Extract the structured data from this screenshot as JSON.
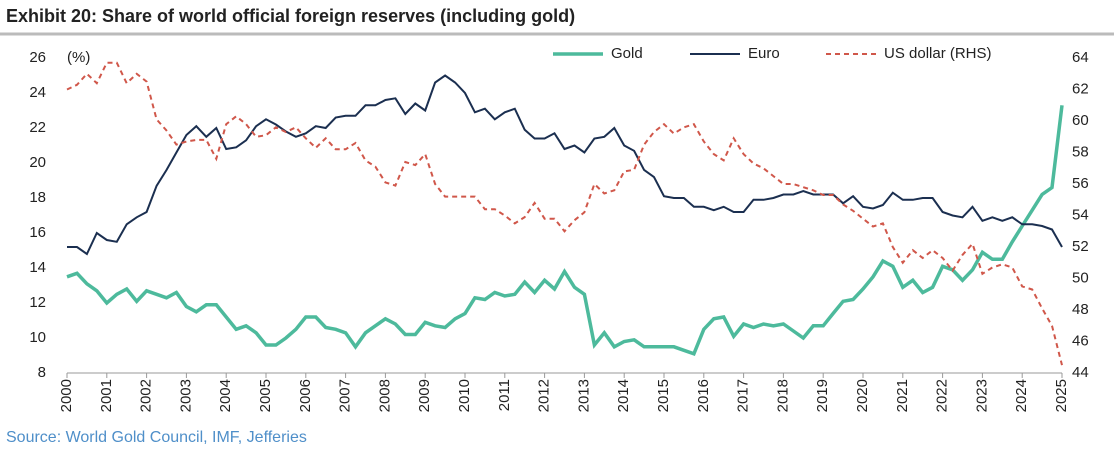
{
  "chart_data": {
    "type": "line",
    "title": "Exhibit 20: Share of world official foreign reserves (including gold)",
    "y_label": "(%)",
    "source": "Source: World Gold Council, IMF, Jefferies",
    "x": [
      2000,
      2000.25,
      2000.5,
      2000.75,
      2001,
      2001.25,
      2001.5,
      2001.75,
      2002,
      2002.25,
      2002.5,
      2002.75,
      2003,
      2003.25,
      2003.5,
      2003.75,
      2004,
      2004.25,
      2004.5,
      2004.75,
      2005,
      2005.25,
      2005.5,
      2005.75,
      2006,
      2006.25,
      2006.5,
      2006.75,
      2007,
      2007.25,
      2007.5,
      2007.75,
      2008,
      2008.25,
      2008.5,
      2008.75,
      2009,
      2009.25,
      2009.5,
      2009.75,
      2010,
      2010.25,
      2010.5,
      2010.75,
      2011,
      2011.25,
      2011.5,
      2011.75,
      2012,
      2012.25,
      2012.5,
      2012.75,
      2013,
      2013.25,
      2013.5,
      2013.75,
      2014,
      2014.25,
      2014.5,
      2014.75,
      2015,
      2015.25,
      2015.5,
      2015.75,
      2016,
      2016.25,
      2016.5,
      2016.75,
      2017,
      2017.25,
      2017.5,
      2017.75,
      2018,
      2018.25,
      2018.5,
      2018.75,
      2019,
      2019.25,
      2019.5,
      2019.75,
      2020,
      2020.25,
      2020.5,
      2020.75,
      2021,
      2021.25,
      2021.5,
      2021.75,
      2022,
      2022.25,
      2022.5,
      2022.75,
      2023,
      2023.25,
      2023.5,
      2023.75,
      2024,
      2024.25,
      2024.5,
      2024.75,
      2025
    ],
    "series": [
      {
        "name": "Gold",
        "color": "#4dba9c",
        "dash": false,
        "values": [
          13.5,
          13.7,
          13.1,
          12.7,
          12.0,
          12.5,
          12.8,
          12.1,
          12.7,
          12.5,
          12.3,
          12.6,
          11.8,
          11.5,
          11.9,
          11.9,
          11.2,
          10.5,
          10.7,
          10.3,
          9.6,
          9.6,
          10.0,
          10.5,
          11.2,
          11.2,
          10.6,
          10.5,
          10.3,
          9.5,
          10.3,
          10.7,
          11.1,
          10.8,
          10.2,
          10.2,
          10.9,
          10.7,
          10.6,
          11.1,
          11.4,
          12.3,
          12.2,
          12.6,
          12.4,
          12.5,
          13.2,
          12.6,
          13.3,
          12.8,
          13.8,
          12.9,
          12.5,
          9.6,
          10.3,
          9.5,
          9.8,
          9.9,
          9.5,
          9.5,
          9.5,
          9.5,
          9.3,
          9.1,
          10.5,
          11.1,
          11.2,
          10.1,
          10.8,
          10.6,
          10.8,
          10.7,
          10.8,
          10.4,
          10.0,
          10.7,
          10.7,
          11.4,
          12.1,
          12.2,
          12.8,
          13.5,
          14.4,
          14.1,
          12.9,
          13.3,
          12.6,
          12.9,
          14.1,
          13.9,
          13.3,
          13.9,
          14.9,
          14.5,
          14.5,
          15.5,
          16.4,
          17.3,
          18.2,
          18.6,
          23.3
        ]
      },
      {
        "name": "Euro",
        "color": "#1b2f50",
        "dash": false,
        "values": [
          15.2,
          15.2,
          14.8,
          16.0,
          15.6,
          15.5,
          16.5,
          16.9,
          17.2,
          18.7,
          19.6,
          20.6,
          21.6,
          22.1,
          21.5,
          22.0,
          20.8,
          20.9,
          21.3,
          22.1,
          22.5,
          22.2,
          21.8,
          21.5,
          21.7,
          22.1,
          22.0,
          22.6,
          22.7,
          22.7,
          23.3,
          23.3,
          23.6,
          23.7,
          22.8,
          23.4,
          23.0,
          24.6,
          25.0,
          24.6,
          24.0,
          22.9,
          23.1,
          22.5,
          22.9,
          23.1,
          21.9,
          21.4,
          21.4,
          21.7,
          20.8,
          21.0,
          20.6,
          21.4,
          21.5,
          22.0,
          21.0,
          20.7,
          19.6,
          19.2,
          18.1,
          18.0,
          18.0,
          17.5,
          17.5,
          17.3,
          17.5,
          17.2,
          17.2,
          17.9,
          17.9,
          18.0,
          18.2,
          18.2,
          18.4,
          18.2,
          18.2,
          18.2,
          17.7,
          18.1,
          17.5,
          17.4,
          17.6,
          18.3,
          17.9,
          17.9,
          18.0,
          18.0,
          17.2,
          17.0,
          16.9,
          17.5,
          16.7,
          16.9,
          16.7,
          16.9,
          16.5,
          16.5,
          16.4,
          16.2,
          15.2
        ]
      },
      {
        "name": "US dollar (RHS)",
        "color": "#d0574a",
        "dash": true,
        "axis": "y2",
        "values": [
          62.0,
          62.3,
          63.0,
          62.4,
          63.7,
          63.7,
          62.4,
          63.0,
          62.5,
          60.1,
          59.4,
          58.5,
          58.7,
          58.8,
          58.8,
          57.6,
          59.8,
          60.3,
          59.8,
          59.0,
          59.1,
          59.6,
          59.3,
          59.6,
          58.9,
          58.3,
          58.9,
          58.2,
          58.2,
          58.6,
          57.5,
          57.1,
          56.1,
          55.9,
          57.4,
          57.2,
          57.9,
          56.0,
          55.2,
          55.2,
          55.2,
          55.2,
          54.4,
          54.4,
          54.0,
          53.5,
          53.9,
          54.8,
          53.8,
          53.8,
          53.0,
          53.7,
          54.2,
          56.0,
          55.4,
          55.6,
          56.8,
          56.9,
          58.5,
          59.3,
          59.8,
          59.2,
          59.6,
          59.8,
          58.7,
          57.9,
          57.5,
          58.9,
          57.9,
          57.3,
          57.0,
          56.5,
          56.0,
          56.0,
          55.8,
          55.6,
          55.3,
          55.3,
          54.7,
          54.3,
          53.8,
          53.3,
          53.5,
          52.0,
          51.0,
          51.8,
          51.3,
          51.8,
          51.3,
          50.5,
          51.5,
          52.2,
          50.3,
          50.7,
          50.9,
          50.7,
          49.5,
          49.3,
          48.1,
          47.0,
          44.5
        ]
      }
    ],
    "xlim": [
      2000,
      2025
    ],
    "xticks": [
      2000,
      2001,
      2002,
      2003,
      2004,
      2005,
      2006,
      2007,
      2008,
      2009,
      2010,
      2011,
      2012,
      2013,
      2014,
      2015,
      2016,
      2017,
      2018,
      2019,
      2020,
      2021,
      2022,
      2023,
      2024,
      2025
    ],
    "ylim": [
      8,
      26
    ],
    "yticks": [
      8,
      10,
      12,
      14,
      16,
      18,
      20,
      22,
      24,
      26
    ],
    "y2lim": [
      44,
      64
    ],
    "y2ticks": [
      44,
      46,
      48,
      50,
      52,
      54,
      56,
      58,
      60,
      62,
      64
    ],
    "legend": "top"
  }
}
